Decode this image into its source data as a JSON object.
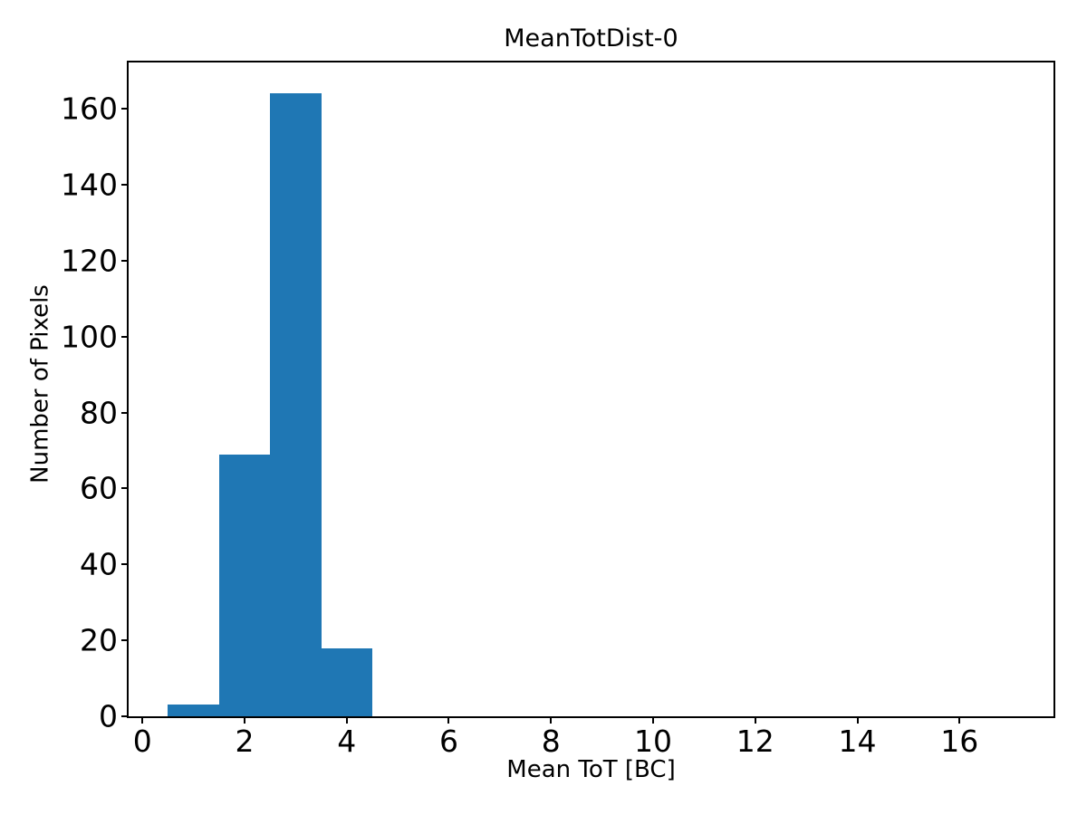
{
  "chart_data": {
    "type": "bar",
    "variant": "histogram",
    "title": "MeanTotDist-0",
    "xlabel": "Mean ToT [BC]",
    "ylabel": "Number of Pixels",
    "bin_edges": [
      0.5,
      1.5,
      2.5,
      3.5,
      4.5
    ],
    "counts": [
      3,
      69,
      164,
      18
    ],
    "xticks": [
      0,
      2,
      4,
      6,
      8,
      10,
      12,
      14,
      16
    ],
    "yticks": [
      0,
      20,
      40,
      60,
      80,
      100,
      120,
      140,
      160
    ],
    "xlim": [
      -0.27,
      17.84
    ],
    "ylim": [
      0,
      172.2
    ],
    "grid": false,
    "legend": null,
    "colors": {
      "bar": "#1f77b4",
      "axis": "#000000",
      "text": "#000000",
      "background": "#ffffff"
    }
  }
}
